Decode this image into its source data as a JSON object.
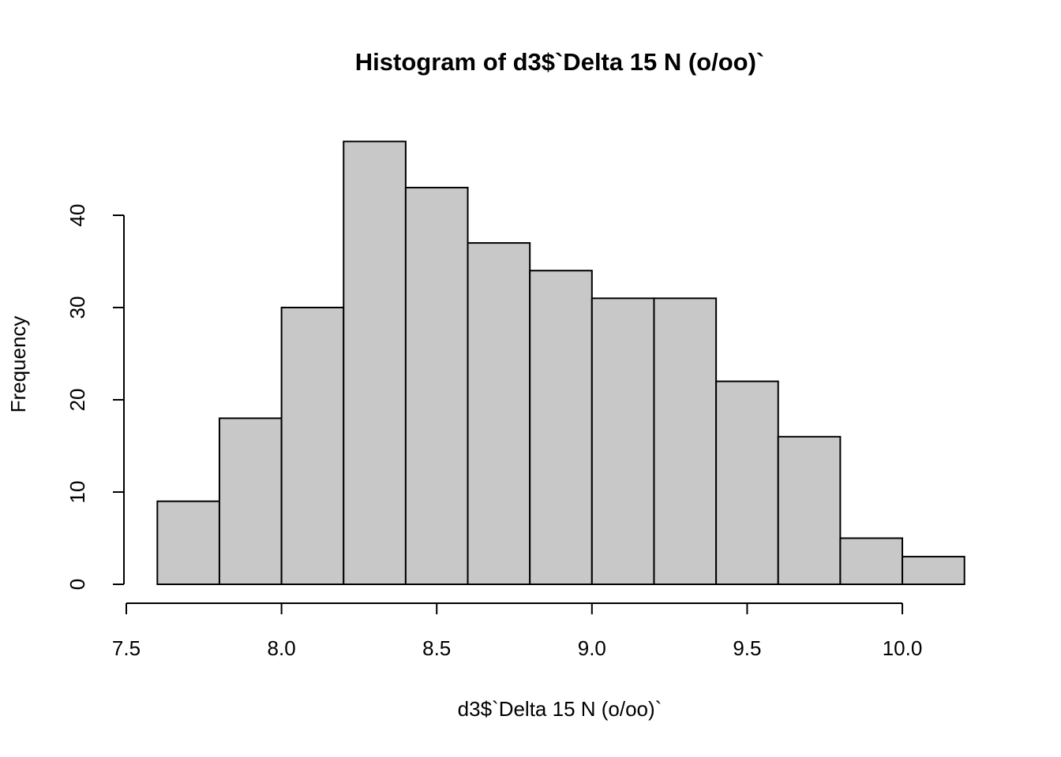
{
  "chart_data": {
    "type": "histogram",
    "title": "Histogram of d3$`Delta 15 N (o/oo)`",
    "xlabel": "d3$`Delta 15 N (o/oo)`",
    "ylabel": "Frequency",
    "bins": [
      7.6,
      7.8,
      8.0,
      8.2,
      8.4,
      8.6,
      8.8,
      9.0,
      9.2,
      9.4,
      9.6,
      9.8,
      10.0,
      10.2
    ],
    "values": [
      9,
      18,
      30,
      48,
      43,
      37,
      34,
      31,
      31,
      22,
      16,
      5,
      3
    ],
    "color": "#c8c8c8",
    "xlim": [
      7.5,
      10.3
    ],
    "ylim": [
      0,
      50
    ],
    "xticks": [
      7.5,
      {
        "value": 8,
        "label": "8.0"
      },
      8.5,
      {
        "value": 9,
        "label": "9.0"
      },
      9.5,
      {
        "value": 10,
        "label": "10.0"
      }
    ],
    "yticks": [
      0,
      10,
      20,
      30,
      40
    ]
  }
}
